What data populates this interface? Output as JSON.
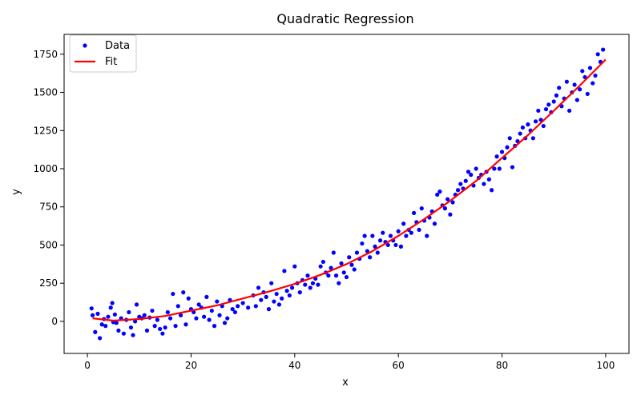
{
  "chart_data": {
    "type": "scatter",
    "title": "Quadratic Regression",
    "xlabel": "x",
    "ylabel": "y",
    "xlim": [
      -4.5,
      104.5
    ],
    "ylim": [
      -210,
      1880
    ],
    "x_ticks": [
      0,
      20,
      40,
      60,
      80,
      100
    ],
    "y_ticks": [
      0,
      250,
      500,
      750,
      1000,
      1250,
      1500,
      1750
    ],
    "grid": false,
    "legend_position": "top-left",
    "series": [
      {
        "name": "Data",
        "kind": "scatter",
        "color": "#0000ff",
        "points": [
          [
            0.8,
            85
          ],
          [
            1.0,
            40
          ],
          [
            1.5,
            -70
          ],
          [
            2.0,
            50
          ],
          [
            2.4,
            -110
          ],
          [
            2.8,
            -20
          ],
          [
            3.2,
            15
          ],
          [
            3.5,
            -30
          ],
          [
            4.0,
            30
          ],
          [
            4.5,
            90
          ],
          [
            4.8,
            120
          ],
          [
            5.0,
            -5
          ],
          [
            5.3,
            45
          ],
          [
            5.6,
            -10
          ],
          [
            6.0,
            -60
          ],
          [
            6.5,
            20
          ],
          [
            7.0,
            -80
          ],
          [
            7.5,
            10
          ],
          [
            8.0,
            60
          ],
          [
            8.4,
            -40
          ],
          [
            8.8,
            -90
          ],
          [
            9.2,
            0
          ],
          [
            9.5,
            110
          ],
          [
            10.0,
            30
          ],
          [
            10.5,
            20
          ],
          [
            11.0,
            40
          ],
          [
            11.5,
            -60
          ],
          [
            12.0,
            25
          ],
          [
            12.5,
            70
          ],
          [
            13.0,
            -30
          ],
          [
            13.5,
            10
          ],
          [
            14.0,
            -50
          ],
          [
            14.5,
            -80
          ],
          [
            15.0,
            -40
          ],
          [
            15.5,
            60
          ],
          [
            16.0,
            20
          ],
          [
            16.5,
            180
          ],
          [
            17.0,
            -30
          ],
          [
            17.5,
            100
          ],
          [
            18.0,
            40
          ],
          [
            18.5,
            190
          ],
          [
            19.0,
            -20
          ],
          [
            19.5,
            150
          ],
          [
            20.0,
            80
          ],
          [
            20.5,
            60
          ],
          [
            21.0,
            20
          ],
          [
            21.5,
            110
          ],
          [
            22.0,
            90
          ],
          [
            22.5,
            30
          ],
          [
            23.0,
            160
          ],
          [
            23.5,
            10
          ],
          [
            24.0,
            70
          ],
          [
            24.5,
            -30
          ],
          [
            25.0,
            130
          ],
          [
            25.5,
            40
          ],
          [
            26.0,
            100
          ],
          [
            26.5,
            -10
          ],
          [
            27.0,
            20
          ],
          [
            27.5,
            140
          ],
          [
            28.0,
            80
          ],
          [
            28.5,
            60
          ],
          [
            29.0,
            100
          ],
          [
            30.0,
            120
          ],
          [
            31.0,
            90
          ],
          [
            32.0,
            170
          ],
          [
            32.5,
            100
          ],
          [
            33.0,
            220
          ],
          [
            33.5,
            140
          ],
          [
            34.0,
            190
          ],
          [
            34.5,
            160
          ],
          [
            35.0,
            80
          ],
          [
            35.5,
            250
          ],
          [
            36.0,
            130
          ],
          [
            36.5,
            180
          ],
          [
            37.0,
            110
          ],
          [
            37.5,
            150
          ],
          [
            38.0,
            330
          ],
          [
            38.5,
            200
          ],
          [
            39.0,
            170
          ],
          [
            39.5,
            220
          ],
          [
            40.0,
            360
          ],
          [
            40.5,
            250
          ],
          [
            41.0,
            190
          ],
          [
            41.5,
            270
          ],
          [
            42.0,
            240
          ],
          [
            42.5,
            300
          ],
          [
            43.0,
            220
          ],
          [
            43.5,
            250
          ],
          [
            44.0,
            280
          ],
          [
            44.5,
            240
          ],
          [
            45.0,
            360
          ],
          [
            45.5,
            390
          ],
          [
            46.0,
            320
          ],
          [
            46.5,
            300
          ],
          [
            47.0,
            350
          ],
          [
            47.5,
            450
          ],
          [
            48.0,
            300
          ],
          [
            48.5,
            250
          ],
          [
            49.0,
            380
          ],
          [
            49.5,
            320
          ],
          [
            50.0,
            290
          ],
          [
            50.5,
            420
          ],
          [
            51.0,
            370
          ],
          [
            51.5,
            340
          ],
          [
            52.0,
            450
          ],
          [
            52.5,
            410
          ],
          [
            53.0,
            510
          ],
          [
            53.5,
            560
          ],
          [
            54.0,
            460
          ],
          [
            54.5,
            420
          ],
          [
            55.0,
            560
          ],
          [
            55.5,
            490
          ],
          [
            56.0,
            450
          ],
          [
            56.5,
            530
          ],
          [
            57.0,
            580
          ],
          [
            57.5,
            520
          ],
          [
            58.0,
            500
          ],
          [
            58.5,
            560
          ],
          [
            59.0,
            530
          ],
          [
            59.5,
            500
          ],
          [
            60.0,
            590
          ],
          [
            60.5,
            490
          ],
          [
            61.0,
            640
          ],
          [
            61.5,
            560
          ],
          [
            62.0,
            600
          ],
          [
            62.5,
            580
          ],
          [
            63.0,
            710
          ],
          [
            63.5,
            650
          ],
          [
            64.0,
            600
          ],
          [
            64.5,
            740
          ],
          [
            65.0,
            660
          ],
          [
            65.5,
            560
          ],
          [
            66.0,
            680
          ],
          [
            66.5,
            720
          ],
          [
            67.0,
            640
          ],
          [
            67.5,
            830
          ],
          [
            68.0,
            850
          ],
          [
            68.5,
            760
          ],
          [
            69.0,
            740
          ],
          [
            69.5,
            800
          ],
          [
            70.0,
            700
          ],
          [
            70.5,
            780
          ],
          [
            71.0,
            830
          ],
          [
            71.5,
            860
          ],
          [
            72.0,
            900
          ],
          [
            72.5,
            870
          ],
          [
            73.0,
            920
          ],
          [
            73.5,
            980
          ],
          [
            74.0,
            960
          ],
          [
            74.5,
            890
          ],
          [
            75.0,
            1000
          ],
          [
            75.5,
            940
          ],
          [
            76.0,
            960
          ],
          [
            76.5,
            900
          ],
          [
            77.0,
            980
          ],
          [
            77.5,
            930
          ],
          [
            78.0,
            860
          ],
          [
            78.5,
            1000
          ],
          [
            79.0,
            1080
          ],
          [
            79.5,
            1000
          ],
          [
            80.0,
            1110
          ],
          [
            80.5,
            1070
          ],
          [
            81.0,
            1140
          ],
          [
            81.5,
            1200
          ],
          [
            82.0,
            1010
          ],
          [
            82.5,
            1150
          ],
          [
            83.0,
            1180
          ],
          [
            83.5,
            1230
          ],
          [
            84.0,
            1270
          ],
          [
            84.5,
            1200
          ],
          [
            85.0,
            1290
          ],
          [
            85.5,
            1250
          ],
          [
            86.0,
            1200
          ],
          [
            86.5,
            1310
          ],
          [
            87.0,
            1380
          ],
          [
            87.5,
            1320
          ],
          [
            88.0,
            1280
          ],
          [
            88.5,
            1390
          ],
          [
            89.0,
            1420
          ],
          [
            89.5,
            1370
          ],
          [
            90.0,
            1440
          ],
          [
            90.5,
            1480
          ],
          [
            91.0,
            1530
          ],
          [
            91.5,
            1410
          ],
          [
            92.0,
            1460
          ],
          [
            92.5,
            1570
          ],
          [
            93.0,
            1380
          ],
          [
            93.5,
            1500
          ],
          [
            94.0,
            1550
          ],
          [
            94.5,
            1450
          ],
          [
            95.0,
            1520
          ],
          [
            95.5,
            1640
          ],
          [
            96.0,
            1600
          ],
          [
            96.5,
            1490
          ],
          [
            97.0,
            1660
          ],
          [
            97.5,
            1560
          ],
          [
            98.0,
            1610
          ],
          [
            98.5,
            1750
          ],
          [
            99.0,
            1700
          ],
          [
            99.5,
            1780
          ]
        ]
      },
      {
        "name": "Fit",
        "kind": "line",
        "color": "#ff0000",
        "points": [
          [
            1,
            20
          ],
          [
            5,
            5
          ],
          [
            10,
            15
          ],
          [
            15,
            35
          ],
          [
            20,
            70
          ],
          [
            25,
            105
          ],
          [
            30,
            150
          ],
          [
            35,
            195
          ],
          [
            40,
            245
          ],
          [
            45,
            305
          ],
          [
            50,
            375
          ],
          [
            55,
            460
          ],
          [
            60,
            560
          ],
          [
            65,
            670
          ],
          [
            70,
            790
          ],
          [
            75,
            920
          ],
          [
            80,
            1070
          ],
          [
            85,
            1220
          ],
          [
            90,
            1380
          ],
          [
            95,
            1545
          ],
          [
            100,
            1715
          ]
        ]
      }
    ]
  }
}
